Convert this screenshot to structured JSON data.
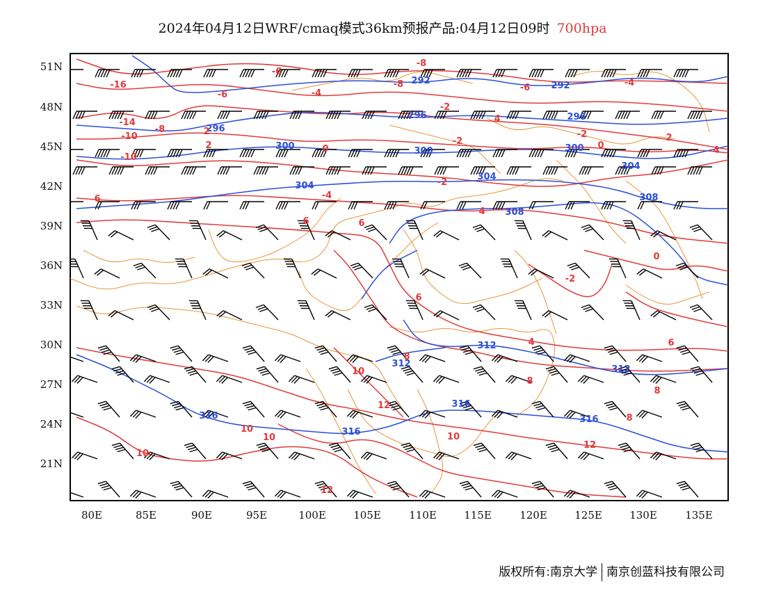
{
  "title": {
    "main": "2024年04月12日WRF/cmaq模式36km预报产品:04月12日09时",
    "level": "700hpa",
    "level_color": "#e03a3a"
  },
  "axes": {
    "lat_labels": [
      "51N",
      "48N",
      "45N",
      "42N",
      "39N",
      "36N",
      "33N",
      "30N",
      "27N",
      "24N",
      "21N"
    ],
    "lon_labels": [
      "80E",
      "85E",
      "90E",
      "95E",
      "100E",
      "105E",
      "110E",
      "115E",
      "120E",
      "125E",
      "130E",
      "135E"
    ]
  },
  "legend_colors": {
    "height_contour": "#2a4fd8",
    "temperature_contour": "#e03a3a",
    "boundary": "#e8953a",
    "wind_barb": "#000000"
  },
  "contour_labels": {
    "blue": [
      "292",
      "292",
      "296",
      "296",
      "296",
      "300",
      "300",
      "300",
      "304",
      "304",
      "304",
      "308",
      "308",
      "312",
      "312",
      "312",
      "316",
      "316",
      "316",
      "316"
    ],
    "red": [
      "-16",
      "-14",
      "-10",
      "-10",
      "-8",
      "-8",
      "-8",
      "-6",
      "-6",
      "-6",
      "-4",
      "-4",
      "-4",
      "-2",
      "-2",
      "-2",
      "-2",
      "-2",
      "0",
      "0",
      "0",
      "2",
      "2",
      "2",
      "4",
      "4",
      "4",
      "4",
      "6",
      "6",
      "6",
      "6",
      "6",
      "8",
      "8",
      "8",
      "8",
      "10",
      "10",
      "10",
      "10",
      "10",
      "12",
      "12",
      "12"
    ]
  },
  "footer": {
    "left": "版权所有:南京大学",
    "right": "南京创蓝科技有限公司"
  }
}
